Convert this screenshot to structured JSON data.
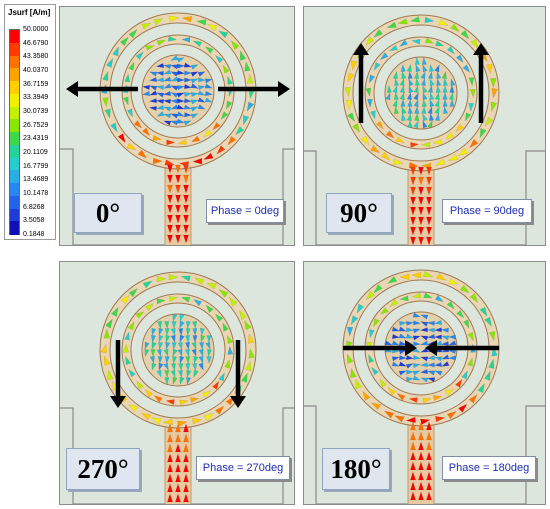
{
  "legend": {
    "title": "Jsurf [A/m]",
    "ticks": [
      "50.0000",
      "46.6790",
      "43.3580",
      "40.0370",
      "36.7159",
      "33.3949",
      "30.0739",
      "26.7529",
      "23.4319",
      "20.1109",
      "16.7799",
      "13.4689",
      "10.1478",
      "6.8268",
      "3.5058",
      "0.1848"
    ],
    "colors": [
      "#ff0000",
      "#ff3a00",
      "#ff7200",
      "#ffa300",
      "#ffd000",
      "#f2f000",
      "#c2f000",
      "#8ae600",
      "#3ed94a",
      "#26d49a",
      "#28cccc",
      "#2aaee6",
      "#2888f0",
      "#2462e6",
      "#1e3cd8",
      "#1010b8"
    ]
  },
  "panels": [
    {
      "id": "p0",
      "angle_label": "0°",
      "phase_label": "Phase = 0deg",
      "mode": "horizontal-out"
    },
    {
      "id": "p90",
      "angle_label": "90°",
      "phase_label": "Phase = 90deg",
      "mode": "vertical-up"
    },
    {
      "id": "p270",
      "angle_label": "270°",
      "phase_label": "Phase = 270deg",
      "mode": "vertical-down"
    },
    {
      "id": "p180",
      "angle_label": "180°",
      "phase_label": "Phase = 180deg",
      "mode": "horizontal-in"
    }
  ]
}
